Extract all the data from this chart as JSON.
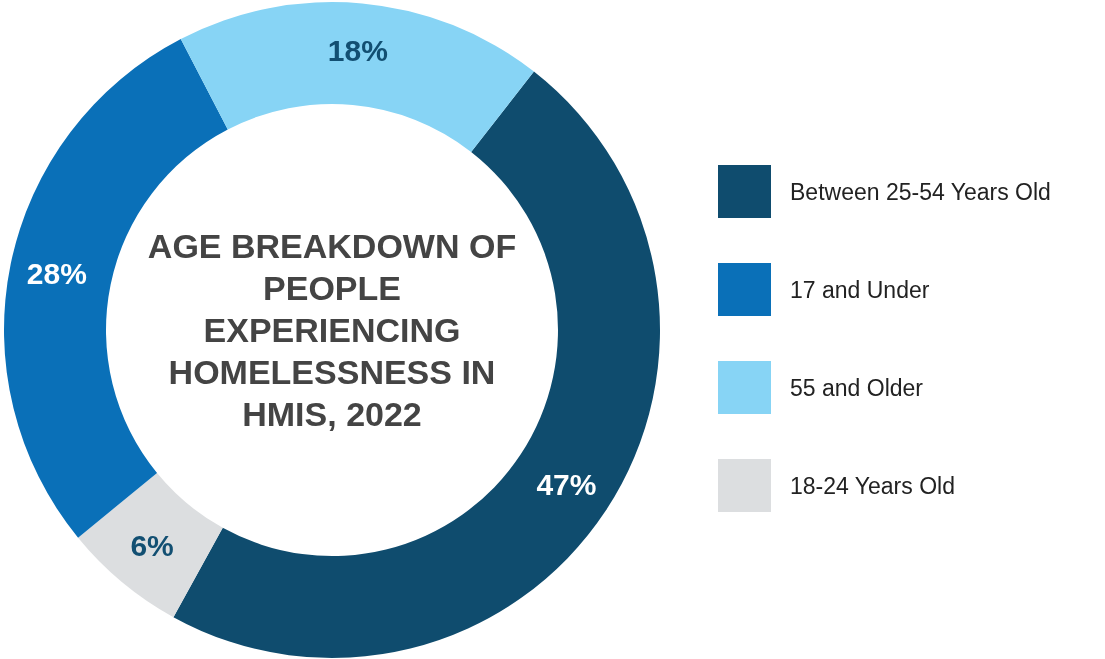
{
  "chart_data": {
    "type": "donut",
    "title": "AGE BREAKDOWN OF PEOPLE EXPERIENCING HOMELESSNESS IN HMIS, 2022",
    "categories": [
      "Between 25-54 Years Old",
      "18-24 Years Old",
      "17 and Under",
      "55 and Older"
    ],
    "values": [
      47,
      6,
      28,
      18
    ],
    "colors": [
      "#0f4c6e",
      "#dcdee0",
      "#0a70b8",
      "#87d4f5"
    ],
    "value_labels": [
      "47%",
      "6%",
      "28%",
      "18%"
    ],
    "legend": "right"
  }
}
